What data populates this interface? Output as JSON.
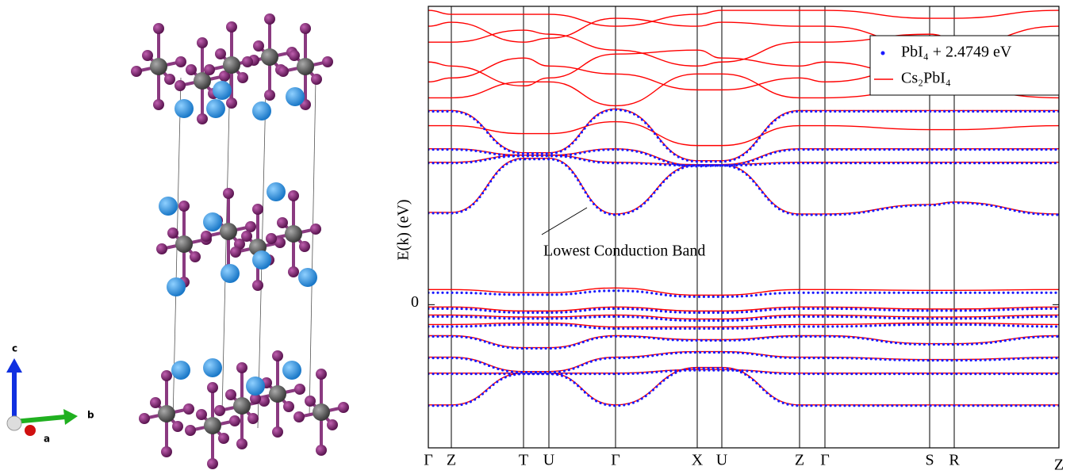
{
  "structure": {
    "axis_labels": {
      "c": "c",
      "b": "b",
      "a": "a"
    }
  },
  "chart_data": {
    "type": "line",
    "ylabel": "E(k) (eV)",
    "annotation": "Lowest Conduction Band",
    "xlim": [
      0,
      7.95
    ],
    "ylim": [
      -3.6,
      7.5
    ],
    "yticks": [
      0
    ],
    "xticks": [
      {
        "value": 0,
        "label": "Γ"
      },
      {
        "value": 0.29,
        "label": "Z"
      },
      {
        "value": 1.2,
        "label": "T"
      },
      {
        "value": 1.52,
        "label": "U"
      },
      {
        "value": 2.36,
        "label": "Γ"
      },
      {
        "value": 3.39,
        "label": "X"
      },
      {
        "value": 3.7,
        "label": "U"
      },
      {
        "value": 4.68,
        "label": "Z"
      },
      {
        "value": 5.0,
        "label": "Γ"
      },
      {
        "value": 6.32,
        "label": "S"
      },
      {
        "value": 6.63,
        "label": "R"
      },
      {
        "value": 7.95,
        "label": "Z"
      }
    ],
    "legend": "upper right",
    "series": [
      {
        "name": "PbI₄ + 2.4749 eV",
        "color": "#1a1aff",
        "marker": "dot",
        "bands": [
          [
            2.3,
            2.3,
            3.66,
            3.66,
            2.26,
            3.5,
            3.5,
            2.26,
            2.26,
            2.5,
            2.56,
            2.26
          ],
          [
            3.56,
            3.56,
            3.74,
            3.74,
            3.56,
            3.5,
            3.5,
            3.56,
            3.56,
            3.56,
            3.56,
            3.56
          ],
          [
            3.9,
            3.9,
            3.74,
            3.74,
            3.9,
            3.48,
            3.5,
            3.9,
            3.9,
            3.9,
            3.9,
            3.9
          ],
          [
            4.86,
            4.86,
            3.8,
            3.8,
            4.9,
            3.6,
            3.6,
            4.86,
            4.86,
            4.86,
            4.86,
            4.86
          ],
          [
            0.3,
            0.3,
            0.25,
            0.25,
            0.35,
            0.2,
            0.2,
            0.3,
            0.3,
            0.3,
            0.3,
            0.3
          ],
          [
            -0.1,
            -0.1,
            -0.2,
            -0.2,
            -0.1,
            -0.2,
            -0.2,
            -0.1,
            -0.1,
            -0.15,
            -0.15,
            -0.1
          ],
          [
            -0.3,
            -0.3,
            -0.35,
            -0.35,
            -0.3,
            -0.4,
            -0.4,
            -0.3,
            -0.3,
            -0.35,
            -0.35,
            -0.3
          ],
          [
            -0.55,
            -0.55,
            -0.5,
            -0.5,
            -0.6,
            -0.6,
            -0.6,
            -0.55,
            -0.55,
            -0.5,
            -0.5,
            -0.55
          ],
          [
            -0.8,
            -0.8,
            -1.1,
            -1.1,
            -0.8,
            -0.9,
            -0.9,
            -0.8,
            -0.8,
            -1.0,
            -1.0,
            -0.8
          ],
          [
            -1.34,
            -1.34,
            -1.7,
            -1.7,
            -1.34,
            -1.2,
            -1.2,
            -1.34,
            -1.34,
            -1.4,
            -1.4,
            -1.34
          ],
          [
            -1.74,
            -1.74,
            -1.74,
            -1.74,
            -1.74,
            -1.65,
            -1.65,
            -1.74,
            -1.74,
            -1.74,
            -1.74,
            -1.74
          ],
          [
            -2.54,
            -2.54,
            -1.74,
            -1.74,
            -2.54,
            -1.6,
            -1.6,
            -2.54,
            -2.54,
            -2.54,
            -2.54,
            -2.54
          ]
        ]
      },
      {
        "name": "Cs₂PbI₄",
        "color": "#ff0000",
        "marker": "line",
        "bands": [
          [
            2.32,
            2.32,
            3.68,
            3.68,
            2.28,
            3.52,
            3.52,
            2.28,
            2.28,
            2.52,
            2.58,
            2.28
          ],
          [
            3.58,
            3.58,
            3.76,
            3.76,
            3.58,
            3.52,
            3.52,
            3.58,
            3.58,
            3.58,
            3.58,
            3.58
          ],
          [
            3.92,
            3.92,
            3.76,
            3.76,
            3.92,
            3.5,
            3.52,
            3.92,
            3.92,
            3.92,
            3.92,
            3.92
          ],
          [
            4.88,
            4.88,
            3.82,
            3.82,
            4.92,
            3.62,
            3.62,
            4.88,
            4.88,
            4.88,
            4.88,
            4.88
          ],
          [
            4.5,
            4.5,
            4.3,
            4.3,
            4.6,
            4.0,
            4.0,
            4.5,
            4.5,
            4.4,
            4.4,
            4.5
          ],
          [
            5.2,
            5.2,
            5.6,
            5.6,
            5.0,
            5.8,
            5.8,
            5.2,
            5.2,
            5.4,
            5.4,
            5.2
          ],
          [
            5.6,
            5.7,
            6.2,
            6.0,
            5.8,
            5.4,
            5.4,
            5.7,
            5.6,
            6.0,
            6.1,
            5.6
          ],
          [
            6.1,
            6.0,
            5.5,
            5.7,
            6.3,
            6.4,
            6.2,
            6.0,
            6.1,
            5.7,
            5.8,
            6.1
          ],
          [
            6.6,
            6.6,
            6.9,
            6.8,
            6.4,
            6.0,
            6.1,
            6.6,
            6.6,
            6.8,
            6.7,
            6.6
          ],
          [
            7.0,
            7.1,
            6.6,
            6.7,
            7.2,
            7.0,
            7.1,
            7.0,
            7.0,
            6.5,
            6.5,
            7.0
          ],
          [
            7.4,
            7.3,
            7.3,
            7.3,
            7.0,
            7.3,
            7.4,
            7.4,
            7.4,
            7.2,
            7.2,
            7.4
          ],
          [
            0.38,
            0.38,
            0.3,
            0.3,
            0.42,
            0.24,
            0.24,
            0.38,
            0.38,
            0.36,
            0.36,
            0.38
          ],
          [
            -0.06,
            -0.06,
            -0.16,
            -0.16,
            -0.06,
            -0.16,
            -0.16,
            -0.06,
            -0.06,
            -0.11,
            -0.11,
            -0.06
          ],
          [
            -0.26,
            -0.26,
            -0.31,
            -0.31,
            -0.26,
            -0.36,
            -0.36,
            -0.26,
            -0.26,
            -0.31,
            -0.31,
            -0.26
          ],
          [
            -0.5,
            -0.5,
            -0.46,
            -0.46,
            -0.56,
            -0.56,
            -0.56,
            -0.5,
            -0.5,
            -0.46,
            -0.46,
            -0.5
          ],
          [
            -0.78,
            -0.78,
            -1.08,
            -1.08,
            -0.78,
            -0.88,
            -0.88,
            -0.78,
            -0.78,
            -0.98,
            -0.98,
            -0.78
          ],
          [
            -1.32,
            -1.32,
            -1.68,
            -1.68,
            -1.32,
            -1.18,
            -1.18,
            -1.32,
            -1.32,
            -1.38,
            -1.38,
            -1.32
          ],
          [
            -1.72,
            -1.72,
            -1.72,
            -1.72,
            -1.72,
            -1.63,
            -1.63,
            -1.72,
            -1.72,
            -1.72,
            -1.72,
            -1.72
          ],
          [
            -2.52,
            -2.52,
            -1.72,
            -1.72,
            -2.52,
            -1.58,
            -1.58,
            -2.52,
            -2.52,
            -2.52,
            -2.52,
            -2.52
          ]
        ]
      }
    ]
  }
}
